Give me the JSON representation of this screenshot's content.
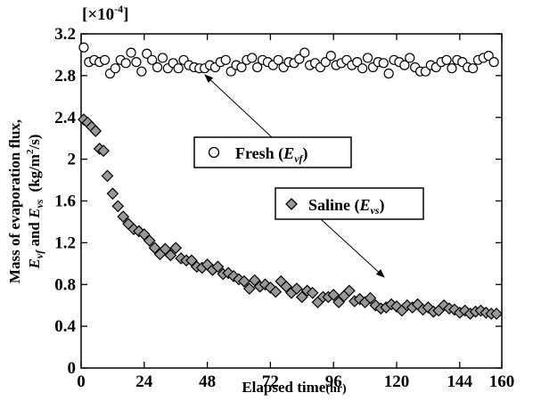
{
  "chart_data": {
    "type": "scatter",
    "title": "",
    "multiplier": "[×10",
    "multiplier_exp": "-4",
    "multiplier_close": "]",
    "xlabel_main": "Elapsed time",
    "xlabel_unit": "(hr)",
    "ylabel_line1": "Mass of evaporation flux,",
    "ylabel_line2": "E",
    "ylabel_line2_sub1": "vf",
    "ylabel_line2_and": " and ",
    "ylabel_line2_E2": "E",
    "ylabel_line2_sub2": "vs",
    "ylabel_line2_unit": "(kg/m",
    "ylabel_line2_exp": "2",
    "ylabel_line2_unit_end": "/s)",
    "xlim": [
      0,
      160
    ],
    "ylim": [
      0,
      3.2
    ],
    "x_ticks": [
      0,
      24,
      48,
      72,
      96,
      120,
      144,
      160
    ],
    "y_ticks": [
      0,
      0.4,
      0.8,
      1.2,
      1.6,
      2,
      2.4,
      2.8,
      3.2
    ],
    "x_tick_labels": [
      "0",
      "24",
      "48",
      "72",
      "96",
      "120",
      "144",
      "160"
    ],
    "y_tick_labels": [
      "0",
      "0.4",
      "0.8",
      "1.2",
      "1.6",
      "2",
      "2.4",
      "2.8",
      "3.2"
    ],
    "grid": false,
    "series": [
      {
        "name": "Fresh",
        "sub": "vf",
        "marker": "circle",
        "x": [
          1,
          3,
          5,
          7,
          9,
          11,
          13,
          15,
          17,
          19,
          21,
          23,
          25,
          27,
          29,
          31,
          33,
          35,
          37,
          39,
          41,
          43,
          45,
          47,
          49,
          51,
          53,
          55,
          57,
          59,
          61,
          63,
          65,
          67,
          69,
          71,
          73,
          75,
          77,
          79,
          81,
          83,
          85,
          87,
          89,
          91,
          93,
          95,
          97,
          99,
          101,
          103,
          105,
          107,
          109,
          111,
          113,
          115,
          117,
          119,
          121,
          123,
          125,
          127,
          129,
          131,
          133,
          135,
          137,
          139,
          141,
          143,
          145,
          147,
          149,
          151,
          153,
          155,
          157
        ],
        "values": [
          3.07,
          2.93,
          2.95,
          2.93,
          2.95,
          2.82,
          2.87,
          2.95,
          2.92,
          3.02,
          2.93,
          2.84,
          3.01,
          2.95,
          2.88,
          2.97,
          2.87,
          2.92,
          2.87,
          2.95,
          2.9,
          2.88,
          2.87,
          2.87,
          2.9,
          2.88,
          2.93,
          2.95,
          2.84,
          2.9,
          2.88,
          2.95,
          2.97,
          2.88,
          2.95,
          2.93,
          2.9,
          2.95,
          2.88,
          2.93,
          2.92,
          2.96,
          3.02,
          2.9,
          2.92,
          2.88,
          2.93,
          2.99,
          2.9,
          2.92,
          2.95,
          2.9,
          2.93,
          2.87,
          2.97,
          2.88,
          2.93,
          2.92,
          2.82,
          2.95,
          2.93,
          2.9,
          2.97,
          2.88,
          2.84,
          2.84,
          2.9,
          2.88,
          2.93,
          2.95,
          2.87,
          2.95,
          2.93,
          2.88,
          2.87,
          2.95,
          2.97,
          2.99,
          2.93
        ]
      },
      {
        "name": "Saline",
        "sub": "vs",
        "marker": "diamond",
        "x": [
          1,
          2.5,
          4,
          5.5,
          7,
          8.5,
          10,
          12,
          14,
          16,
          18,
          20,
          22,
          24,
          26,
          28,
          30,
          32,
          34,
          36,
          38,
          40,
          42,
          44,
          46,
          48,
          50,
          52,
          54,
          56,
          58,
          60,
          62,
          64,
          66,
          68,
          70,
          72,
          74,
          76,
          78,
          80,
          82,
          84,
          86,
          88,
          90,
          92,
          94,
          96,
          98,
          100,
          102,
          104,
          106,
          108,
          110,
          112,
          114,
          116,
          118,
          120,
          122,
          124,
          126,
          128,
          130,
          132,
          134,
          136,
          138,
          140,
          142,
          144,
          146,
          148,
          150,
          152,
          154,
          156,
          158
        ],
        "values": [
          2.38,
          2.35,
          2.31,
          2.27,
          2.1,
          2.08,
          1.84,
          1.67,
          1.55,
          1.45,
          1.38,
          1.33,
          1.31,
          1.28,
          1.22,
          1.15,
          1.09,
          1.14,
          1.08,
          1.15,
          1.05,
          1.03,
          1.03,
          0.97,
          0.96,
          0.99,
          0.94,
          0.97,
          0.9,
          0.91,
          0.88,
          0.85,
          0.83,
          0.76,
          0.84,
          0.78,
          0.8,
          0.77,
          0.73,
          0.83,
          0.78,
          0.72,
          0.76,
          0.68,
          0.74,
          0.72,
          0.63,
          0.68,
          0.68,
          0.7,
          0.63,
          0.69,
          0.74,
          0.64,
          0.66,
          0.63,
          0.67,
          0.6,
          0.57,
          0.58,
          0.61,
          0.59,
          0.55,
          0.6,
          0.58,
          0.61,
          0.56,
          0.58,
          0.54,
          0.55,
          0.6,
          0.57,
          0.56,
          0.53,
          0.55,
          0.52,
          0.54,
          0.55,
          0.53,
          0.52,
          0.52
        ]
      }
    ],
    "legend": {
      "fresh_label": "Fresh (",
      "fresh_E": "E",
      "fresh_sub": "vf",
      "fresh_close": ")",
      "saline_label": "Saline (",
      "saline_E": "E",
      "saline_sub": "vs",
      "saline_close": ")"
    }
  }
}
